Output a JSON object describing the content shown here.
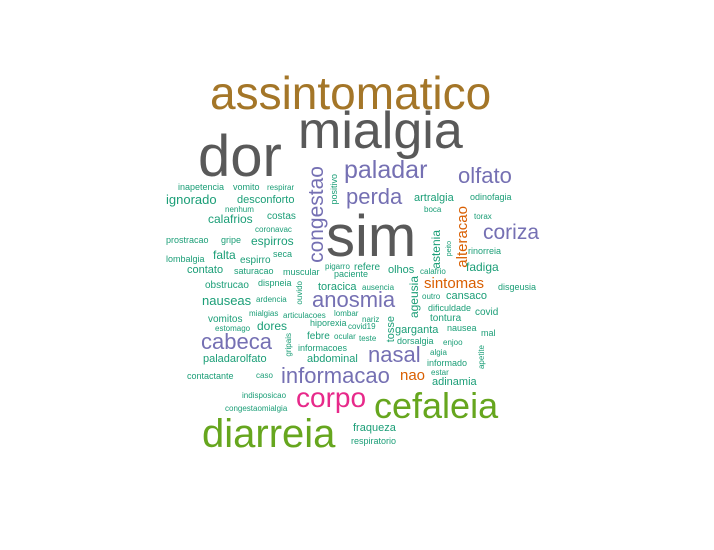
{
  "colors": {
    "dark_gray": "#595959",
    "olive_brown": "#a47628",
    "green": "#66a61e",
    "magenta": "#e7298a",
    "purple": "#7570b3",
    "orange": "#d95f02",
    "teal": "#1b9e77"
  },
  "words": [
    {
      "text": "assintomatico",
      "color": "olive_brown"
    },
    {
      "text": "mialgia",
      "color": "dark_gray"
    },
    {
      "text": "dor",
      "color": "dark_gray"
    },
    {
      "text": "sim",
      "color": "dark_gray"
    },
    {
      "text": "cefaleia",
      "color": "green"
    },
    {
      "text": "diarreia",
      "color": "green"
    },
    {
      "text": "corpo",
      "color": "magenta"
    },
    {
      "text": "paladar",
      "color": "purple"
    },
    {
      "text": "olfato",
      "color": "purple"
    },
    {
      "text": "perda",
      "color": "purple"
    },
    {
      "text": "coriza",
      "color": "purple"
    },
    {
      "text": "anosmia",
      "color": "purple"
    },
    {
      "text": "cabeca",
      "color": "purple"
    },
    {
      "text": "nasal",
      "color": "purple"
    },
    {
      "text": "informacao",
      "color": "purple"
    },
    {
      "text": "congestao",
      "color": "purple"
    },
    {
      "text": "nao",
      "color": "orange"
    },
    {
      "text": "sintomas",
      "color": "orange"
    },
    {
      "text": "alteracao",
      "color": "orange"
    },
    {
      "text": "inapetencia",
      "color": "teal"
    },
    {
      "text": "vomito",
      "color": "teal"
    },
    {
      "text": "respirar",
      "color": "teal"
    },
    {
      "text": "ignorado",
      "color": "teal"
    },
    {
      "text": "desconforto",
      "color": "teal"
    },
    {
      "text": "nenhum",
      "color": "teal"
    },
    {
      "text": "calafrios",
      "color": "teal"
    },
    {
      "text": "costas",
      "color": "teal"
    },
    {
      "text": "coronavac",
      "color": "teal"
    },
    {
      "text": "prostracao",
      "color": "teal"
    },
    {
      "text": "gripe",
      "color": "teal"
    },
    {
      "text": "espirros",
      "color": "teal"
    },
    {
      "text": "lombalgia",
      "color": "teal"
    },
    {
      "text": "falta",
      "color": "teal"
    },
    {
      "text": "espirro",
      "color": "teal"
    },
    {
      "text": "seca",
      "color": "teal"
    },
    {
      "text": "contato",
      "color": "teal"
    },
    {
      "text": "saturacao",
      "color": "teal"
    },
    {
      "text": "muscular",
      "color": "teal"
    },
    {
      "text": "obstrucao",
      "color": "teal"
    },
    {
      "text": "dispneia",
      "color": "teal"
    },
    {
      "text": "nauseas",
      "color": "teal"
    },
    {
      "text": "ardencia",
      "color": "teal"
    },
    {
      "text": "vomitos",
      "color": "teal"
    },
    {
      "text": "mialgias",
      "color": "teal"
    },
    {
      "text": "articulacoes",
      "color": "teal"
    },
    {
      "text": "estomago",
      "color": "teal"
    },
    {
      "text": "dores",
      "color": "teal"
    },
    {
      "text": "paladarolfato",
      "color": "teal"
    },
    {
      "text": "contactante",
      "color": "teal"
    },
    {
      "text": "caso",
      "color": "teal"
    },
    {
      "text": "indisposicao",
      "color": "teal"
    },
    {
      "text": "congestaomialgia",
      "color": "teal"
    },
    {
      "text": "positivo",
      "color": "teal"
    },
    {
      "text": "pigarro",
      "color": "teal"
    },
    {
      "text": "paciente",
      "color": "teal"
    },
    {
      "text": "refere",
      "color": "teal"
    },
    {
      "text": "olhos",
      "color": "teal"
    },
    {
      "text": "toracica",
      "color": "teal"
    },
    {
      "text": "ausencia",
      "color": "teal"
    },
    {
      "text": "lombar",
      "color": "teal"
    },
    {
      "text": "hiporexia",
      "color": "teal"
    },
    {
      "text": "nariz",
      "color": "teal"
    },
    {
      "text": "covid19",
      "color": "teal"
    },
    {
      "text": "febre",
      "color": "teal"
    },
    {
      "text": "ocular",
      "color": "teal"
    },
    {
      "text": "teste",
      "color": "teal"
    },
    {
      "text": "informacoes",
      "color": "teal"
    },
    {
      "text": "abdominal",
      "color": "teal"
    },
    {
      "text": "ouvido",
      "color": "teal"
    },
    {
      "text": "gripais",
      "color": "teal"
    },
    {
      "text": "tosse",
      "color": "teal"
    },
    {
      "text": "ageusia",
      "color": "teal"
    },
    {
      "text": "artralgia",
      "color": "teal"
    },
    {
      "text": "boca",
      "color": "teal"
    },
    {
      "text": "odinofagia",
      "color": "teal"
    },
    {
      "text": "torax",
      "color": "teal"
    },
    {
      "text": "astenia",
      "color": "teal"
    },
    {
      "text": "peito",
      "color": "teal"
    },
    {
      "text": "rinorreia",
      "color": "teal"
    },
    {
      "text": "fadiga",
      "color": "teal"
    },
    {
      "text": "calafrio",
      "color": "teal"
    },
    {
      "text": "outro",
      "color": "teal"
    },
    {
      "text": "cansaco",
      "color": "teal"
    },
    {
      "text": "disgeusia",
      "color": "teal"
    },
    {
      "text": "dificuldade",
      "color": "teal"
    },
    {
      "text": "tontura",
      "color": "teal"
    },
    {
      "text": "covid",
      "color": "teal"
    },
    {
      "text": "garganta",
      "color": "teal"
    },
    {
      "text": "nausea",
      "color": "teal"
    },
    {
      "text": "mal",
      "color": "teal"
    },
    {
      "text": "enjoo",
      "color": "teal"
    },
    {
      "text": "dorsalgia",
      "color": "teal"
    },
    {
      "text": "algia",
      "color": "teal"
    },
    {
      "text": "apetite",
      "color": "teal"
    },
    {
      "text": "informado",
      "color": "teal"
    },
    {
      "text": "estar",
      "color": "teal"
    },
    {
      "text": "adinamia",
      "color": "teal"
    },
    {
      "text": "fraqueza",
      "color": "teal"
    },
    {
      "text": "respiratorio",
      "color": "teal"
    }
  ]
}
